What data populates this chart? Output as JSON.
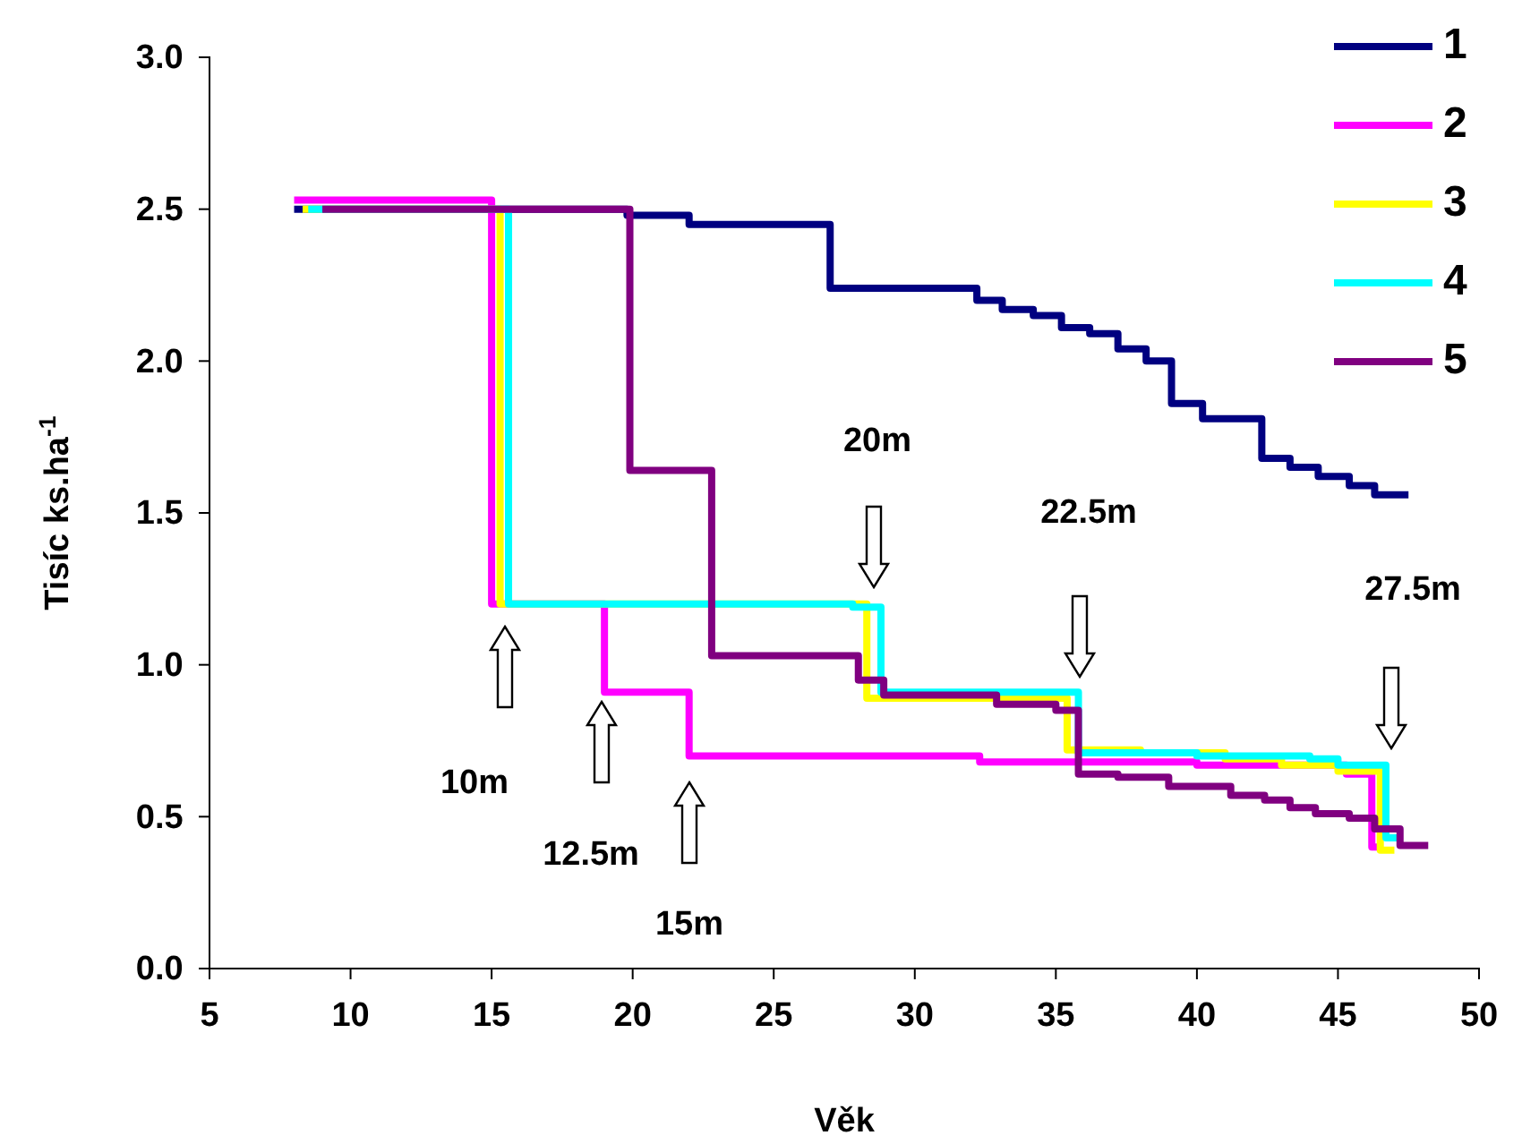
{
  "chart_data": {
    "type": "step",
    "xlabel": "Věk",
    "ylabel": "Tisíc ks.ha$^{-1}$",
    "xlim": [
      5,
      50
    ],
    "ylim": [
      0,
      3
    ],
    "xticks": [
      5,
      10,
      15,
      20,
      25,
      30,
      35,
      40,
      45,
      50
    ],
    "yticks": [
      {
        "value": 0,
        "label": "0.0"
      },
      {
        "value": 0.5,
        "label": "0.5"
      },
      {
        "value": 1,
        "label": "1.0"
      },
      {
        "value": 1.5,
        "label": "1.5"
      },
      {
        "value": 2,
        "label": "2.0"
      },
      {
        "value": 2.5,
        "label": "2.5"
      },
      {
        "value": 3,
        "label": "3.0"
      }
    ],
    "grid": false,
    "legend": "top right",
    "line_style": "solid",
    "marker": "none",
    "series": [
      {
        "name": "1",
        "color": "#000080",
        "x": [
          8,
          19.8,
          22,
          27,
          32.2,
          33.1,
          34.2,
          35.2,
          36.2,
          37.2,
          38.2,
          39.1,
          40.2,
          42.3,
          43.3,
          44.3,
          45.4,
          46.3,
          47.5
        ],
        "values": [
          2.5,
          2.48,
          2.45,
          2.24,
          2.2,
          2.17,
          2.15,
          2.11,
          2.09,
          2.04,
          2,
          1.86,
          1.81,
          1.68,
          1.65,
          1.62,
          1.59,
          1.56,
          1.56
        ]
      },
      {
        "name": "2",
        "color": "#ff00ff",
        "x": [
          8,
          15,
          19,
          22,
          32.3,
          40,
          45.3,
          46.2,
          46.6
        ],
        "values": [
          2.53,
          1.2,
          0.91,
          0.7,
          0.68,
          0.67,
          0.64,
          0.4,
          0.4
        ]
      },
      {
        "name": "3",
        "color": "#ffff00",
        "x": [
          8.3,
          15.3,
          28.3,
          35.4,
          38,
          41,
          43,
          45,
          46.5,
          47
        ],
        "values": [
          2.5,
          1.2,
          0.89,
          0.72,
          0.71,
          0.69,
          0.67,
          0.65,
          0.39,
          0.39
        ]
      },
      {
        "name": "4",
        "color": "#00ffff",
        "x": [
          8.5,
          15.6,
          27.8,
          28.8,
          35.8,
          40,
          44,
          45,
          46.7,
          47.3
        ],
        "values": [
          2.5,
          1.2,
          1.19,
          0.91,
          0.71,
          0.7,
          0.69,
          0.67,
          0.43,
          0.43
        ]
      },
      {
        "name": "5",
        "color": "#800080",
        "x": [
          9,
          19.9,
          22.8,
          28,
          28.9,
          32.9,
          35,
          35.8,
          37.2,
          39,
          41.2,
          42.4,
          43.3,
          44.2,
          45.4,
          46.3,
          47.2,
          48.2
        ],
        "values": [
          2.5,
          1.64,
          1.03,
          0.95,
          0.9,
          0.87,
          0.85,
          0.64,
          0.63,
          0.6,
          0.57,
          0.555,
          0.53,
          0.51,
          0.495,
          0.46,
          0.405,
          0.405
        ]
      }
    ],
    "annotations": [
      "10m",
      "12.5m",
      "15m",
      "20m",
      "22.5m",
      "27.5m"
    ]
  }
}
